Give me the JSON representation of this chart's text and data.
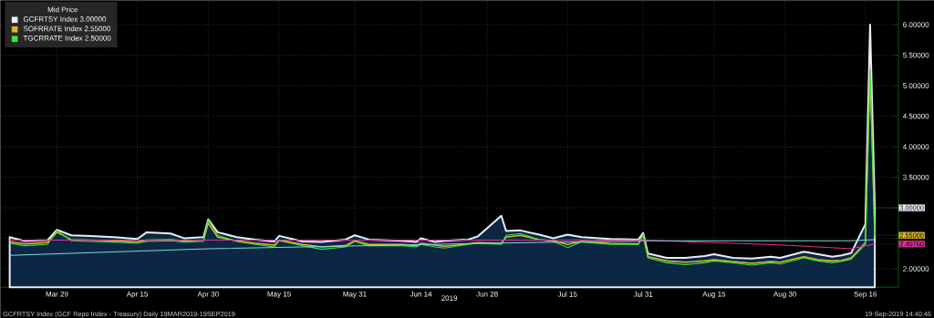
{
  "chart_data": {
    "type": "line",
    "xlabel": "2019",
    "legend_title": "Mid Price",
    "annotations": [
      "GCFRTSY Index (GCF Repo Index - Treasury)  Daily 19MAR2019-19SEP2019",
      "19-Sep-2019 14:40:46"
    ],
    "x": [
      "2019-03-19",
      "2019-03-22",
      "2019-03-27",
      "2019-03-29",
      "2019-04-01",
      "2019-04-05",
      "2019-04-10",
      "2019-04-15",
      "2019-04-17",
      "2019-04-22",
      "2019-04-25",
      "2019-04-29",
      "2019-04-30",
      "2019-05-02",
      "2019-05-06",
      "2019-05-10",
      "2019-05-14",
      "2019-05-15",
      "2019-05-20",
      "2019-05-24",
      "2019-05-29",
      "2019-05-31",
      "2019-06-03",
      "2019-06-10",
      "2019-06-13",
      "2019-06-14",
      "2019-06-17",
      "2019-06-19",
      "2019-06-24",
      "2019-06-26",
      "2019-07-01",
      "2019-07-02",
      "2019-07-05",
      "2019-07-09",
      "2019-07-12",
      "2019-07-15",
      "2019-07-18",
      "2019-07-24",
      "2019-07-30",
      "2019-07-31",
      "2019-08-01",
      "2019-08-05",
      "2019-08-09",
      "2019-08-13",
      "2019-08-15",
      "2019-08-19",
      "2019-08-23",
      "2019-08-27",
      "2019-08-29",
      "2019-09-03",
      "2019-09-06",
      "2019-09-09",
      "2019-09-11",
      "2019-09-13",
      "2019-09-16",
      "2019-09-17",
      "2019-09-18"
    ],
    "series": [
      {
        "name": "GCFRTSY Index  3.00000",
        "type": "area",
        "color": "#e8eef8",
        "values": [
          2.52,
          2.46,
          2.47,
          2.64,
          2.55,
          2.54,
          2.52,
          2.49,
          2.6,
          2.58,
          2.5,
          2.52,
          2.81,
          2.6,
          2.52,
          2.48,
          2.45,
          2.54,
          2.45,
          2.44,
          2.48,
          2.55,
          2.48,
          2.46,
          2.44,
          2.5,
          2.44,
          2.46,
          2.48,
          2.53,
          2.87,
          2.62,
          2.63,
          2.56,
          2.5,
          2.56,
          2.52,
          2.49,
          2.48,
          2.59,
          2.25,
          2.18,
          2.18,
          2.21,
          2.24,
          2.18,
          2.17,
          2.2,
          2.18,
          2.28,
          2.24,
          2.2,
          2.22,
          2.26,
          2.73,
          6.0,
          3.0
        ],
        "value_labels": [
          null,
          null,
          null,
          null,
          null,
          null,
          null,
          null,
          null,
          null,
          null,
          null,
          null,
          null,
          null,
          null,
          null,
          null,
          null,
          null,
          null,
          null,
          null,
          null,
          null,
          null,
          null,
          null,
          null,
          null,
          null,
          null,
          null,
          null,
          null,
          null,
          null,
          null,
          null,
          null,
          null,
          null,
          null,
          null,
          null,
          null,
          null,
          null,
          null,
          null,
          null,
          null,
          null,
          null,
          null,
          null,
          "3.00000"
        ]
      },
      {
        "name": "SOFRRATE Index 2.55000",
        "color": "#d9b62a",
        "values": [
          2.44,
          2.41,
          2.43,
          2.6,
          2.48,
          2.47,
          2.46,
          2.44,
          2.47,
          2.48,
          2.46,
          2.47,
          2.75,
          2.52,
          2.46,
          2.42,
          2.39,
          2.47,
          2.4,
          2.36,
          2.38,
          2.46,
          2.4,
          2.4,
          2.38,
          2.42,
          2.39,
          2.37,
          2.41,
          2.43,
          2.42,
          2.52,
          2.55,
          2.48,
          2.46,
          2.4,
          2.45,
          2.42,
          2.41,
          2.55,
          2.2,
          2.13,
          2.11,
          2.13,
          2.15,
          2.12,
          2.09,
          2.12,
          2.11,
          2.2,
          2.15,
          2.13,
          2.14,
          2.18,
          2.43,
          5.25,
          2.55
        ],
        "value_labels": [
          null,
          null,
          null,
          null,
          null,
          null,
          null,
          null,
          null,
          null,
          null,
          null,
          null,
          null,
          null,
          null,
          null,
          null,
          null,
          null,
          null,
          null,
          null,
          null,
          null,
          null,
          null,
          null,
          null,
          null,
          null,
          null,
          null,
          null,
          null,
          null,
          null,
          null,
          null,
          null,
          null,
          null,
          null,
          null,
          null,
          null,
          null,
          null,
          null,
          null,
          null,
          null,
          null,
          null,
          null,
          null,
          "2.55000"
        ]
      },
      {
        "name": "TGCRRATE Index 2.50000",
        "color": "#39e639",
        "values": [
          2.42,
          2.38,
          2.4,
          2.63,
          2.46,
          2.45,
          2.44,
          2.42,
          2.45,
          2.46,
          2.44,
          2.45,
          2.8,
          2.55,
          2.45,
          2.4,
          2.36,
          2.46,
          2.38,
          2.32,
          2.36,
          2.45,
          2.38,
          2.38,
          2.36,
          2.4,
          2.36,
          2.34,
          2.4,
          2.42,
          2.4,
          2.55,
          2.58,
          2.48,
          2.45,
          2.35,
          2.44,
          2.4,
          2.4,
          2.57,
          2.18,
          2.1,
          2.07,
          2.1,
          2.13,
          2.1,
          2.06,
          2.1,
          2.08,
          2.18,
          2.13,
          2.1,
          2.12,
          2.16,
          2.4,
          5.25,
          2.5
        ]
      },
      {
        "color": "#e0309a",
        "x": [
          "2019-03-19",
          "2019-07-31",
          "2019-08-30",
          "2019-09-13",
          "2019-09-18"
        ],
        "values": [
          2.47,
          2.47,
          2.39,
          2.33,
          2.4076
        ],
        "value_labels": [
          null,
          null,
          null,
          null,
          "2.40760"
        ]
      },
      {
        "color": "#7fd6d6",
        "x": [
          "2019-03-19",
          "2019-04-30",
          "2019-06-28",
          "2019-07-31",
          "2019-09-13",
          "2019-09-18"
        ],
        "values": [
          2.22,
          2.33,
          2.42,
          2.46,
          2.46,
          2.48
        ]
      }
    ],
    "xlim": [
      "2019-03-17",
      "2019-09-23"
    ],
    "xticks": [
      {
        "value": "2019-03-29",
        "label": "Mar 29"
      },
      {
        "value": "2019-04-15",
        "label": "Apr 15"
      },
      {
        "value": "2019-04-30",
        "label": "Apr 30"
      },
      {
        "value": "2019-05-15",
        "label": "May 15"
      },
      {
        "value": "2019-05-31",
        "label": "May 31"
      },
      {
        "value": "2019-06-14",
        "label": "Jun 14"
      },
      {
        "value": "2019-06-28",
        "label": "Jun 28"
      },
      {
        "value": "2019-07-15",
        "label": "Jul 15"
      },
      {
        "value": "2019-07-31",
        "label": "Jul 31"
      },
      {
        "value": "2019-08-15",
        "label": "Aug 15"
      },
      {
        "value": "2019-08-30",
        "label": "Aug 30"
      },
      {
        "value": "2019-09-16",
        "label": "Sep 16"
      }
    ],
    "ylim": [
      1.7,
      6.4
    ],
    "yticks": [
      {
        "value": 2.0,
        "label": "2.00000"
      },
      {
        "value": 2.5,
        "label": null
      },
      {
        "value": 3.0,
        "label": null
      },
      {
        "value": 3.5,
        "label": "3.50000"
      },
      {
        "value": 4.0,
        "label": "4.00000"
      },
      {
        "value": 4.5,
        "label": "4.50000"
      },
      {
        "value": 5.0,
        "label": "5.00000"
      },
      {
        "value": 5.5,
        "label": "5.50000"
      },
      {
        "value": 6.0,
        "label": "6.00000"
      }
    ],
    "grid": true,
    "legend": "top left"
  }
}
